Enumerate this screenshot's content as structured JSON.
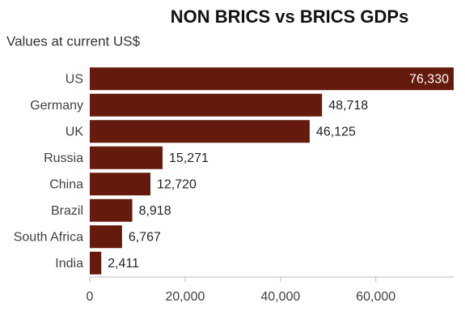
{
  "chart_data": {
    "type": "bar",
    "orientation": "horizontal",
    "title": "NON BRICS vs BRICS GDPs",
    "subtitle": "Values at current US$",
    "categories": [
      "US",
      "Germany",
      "UK",
      "Russia",
      "China",
      "Brazil",
      "South Africa",
      "India"
    ],
    "values": [
      76330,
      48718,
      46125,
      15271,
      12720,
      8918,
      6767,
      2411
    ],
    "value_labels": [
      "76,330",
      "48,718",
      "46,125",
      "15,271",
      "12,720",
      "8,918",
      "6,767",
      "2,411"
    ],
    "color": "#641a0c",
    "xlim": [
      0,
      76330
    ],
    "xticks": [
      0,
      {
        "value": 20000,
        "label": "20,000"
      },
      {
        "value": 40000,
        "label": "40,000"
      },
      {
        "value": 60000,
        "label": "60,000"
      }
    ]
  }
}
